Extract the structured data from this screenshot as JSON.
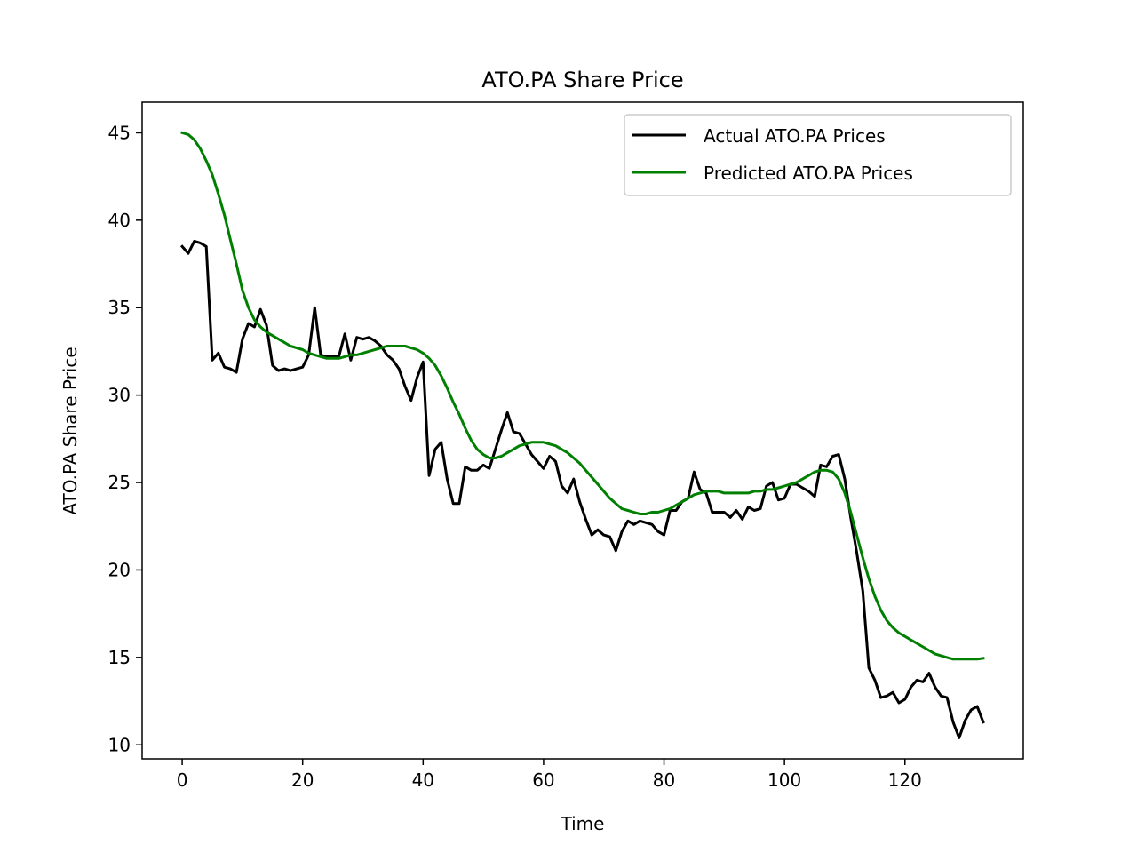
{
  "chart_data": {
    "type": "line",
    "title": "ATO.PA Share Price",
    "xlabel": "Time",
    "ylabel": "ATO.PA Share Price",
    "xlim": [
      -6.65,
      139.65
    ],
    "ylim": [
      9.2,
      46.75
    ],
    "xticks": [
      0,
      20,
      40,
      60,
      80,
      100,
      120
    ],
    "yticks": [
      10,
      15,
      20,
      25,
      30,
      35,
      40,
      45
    ],
    "grid": false,
    "legend_position": "upper right",
    "series": [
      {
        "name": "Actual ATO.PA Prices",
        "color": "#000000",
        "points": [
          [
            0,
            38.5
          ],
          [
            1,
            38.1
          ],
          [
            2,
            38.8
          ],
          [
            3,
            38.7
          ],
          [
            4,
            38.5
          ],
          [
            5,
            32.0
          ],
          [
            6,
            32.4
          ],
          [
            7,
            31.6
          ],
          [
            8,
            31.5
          ],
          [
            9,
            31.3
          ],
          [
            10,
            33.2
          ],
          [
            11,
            34.1
          ],
          [
            12,
            33.9
          ],
          [
            13,
            34.9
          ],
          [
            14,
            34.0
          ],
          [
            15,
            31.7
          ],
          [
            16,
            31.4
          ],
          [
            17,
            31.5
          ],
          [
            18,
            31.4
          ],
          [
            19,
            31.5
          ],
          [
            20,
            31.6
          ],
          [
            21,
            32.3
          ],
          [
            22,
            35.0
          ],
          [
            23,
            32.3
          ],
          [
            24,
            32.2
          ],
          [
            25,
            32.2
          ],
          [
            26,
            32.2
          ],
          [
            27,
            33.5
          ],
          [
            28,
            32.0
          ],
          [
            29,
            33.3
          ],
          [
            30,
            33.2
          ],
          [
            31,
            33.3
          ],
          [
            32,
            33.1
          ],
          [
            33,
            32.8
          ],
          [
            34,
            32.3
          ],
          [
            35,
            32.0
          ],
          [
            36,
            31.5
          ],
          [
            37,
            30.5
          ],
          [
            38,
            29.7
          ],
          [
            39,
            31.0
          ],
          [
            40,
            31.9
          ],
          [
            41,
            25.4
          ],
          [
            42,
            26.9
          ],
          [
            43,
            27.3
          ],
          [
            44,
            25.2
          ],
          [
            45,
            23.8
          ],
          [
            46,
            23.8
          ],
          [
            47,
            25.9
          ],
          [
            48,
            25.7
          ],
          [
            49,
            25.7
          ],
          [
            50,
            26.0
          ],
          [
            51,
            25.8
          ],
          [
            52,
            26.9
          ],
          [
            53,
            28.0
          ],
          [
            54,
            29.0
          ],
          [
            55,
            27.9
          ],
          [
            56,
            27.8
          ],
          [
            57,
            27.2
          ],
          [
            58,
            26.6
          ],
          [
            59,
            26.2
          ],
          [
            60,
            25.8
          ],
          [
            61,
            26.5
          ],
          [
            62,
            26.2
          ],
          [
            63,
            24.8
          ],
          [
            64,
            24.4
          ],
          [
            65,
            25.2
          ],
          [
            66,
            23.9
          ],
          [
            67,
            22.9
          ],
          [
            68,
            22.0
          ],
          [
            69,
            22.3
          ],
          [
            70,
            22.0
          ],
          [
            71,
            21.9
          ],
          [
            72,
            21.1
          ],
          [
            73,
            22.2
          ],
          [
            74,
            22.8
          ],
          [
            75,
            22.6
          ],
          [
            76,
            22.8
          ],
          [
            77,
            22.7
          ],
          [
            78,
            22.6
          ],
          [
            79,
            22.2
          ],
          [
            80,
            22.0
          ],
          [
            81,
            23.4
          ],
          [
            82,
            23.4
          ],
          [
            83,
            23.9
          ],
          [
            84,
            24.1
          ],
          [
            85,
            25.6
          ],
          [
            86,
            24.6
          ],
          [
            87,
            24.4
          ],
          [
            88,
            23.3
          ],
          [
            89,
            23.3
          ],
          [
            90,
            23.3
          ],
          [
            91,
            23.0
          ],
          [
            92,
            23.4
          ],
          [
            93,
            22.9
          ],
          [
            94,
            23.6
          ],
          [
            95,
            23.4
          ],
          [
            96,
            23.5
          ],
          [
            97,
            24.8
          ],
          [
            98,
            25.0
          ],
          [
            99,
            24.0
          ],
          [
            100,
            24.1
          ],
          [
            101,
            24.9
          ],
          [
            102,
            24.9
          ],
          [
            103,
            24.7
          ],
          [
            104,
            24.5
          ],
          [
            105,
            24.2
          ],
          [
            106,
            26.0
          ],
          [
            107,
            25.9
          ],
          [
            108,
            26.5
          ],
          [
            109,
            26.6
          ],
          [
            110,
            25.2
          ],
          [
            111,
            23.0
          ],
          [
            112,
            21.0
          ],
          [
            113,
            18.8
          ],
          [
            114,
            14.4
          ],
          [
            115,
            13.7
          ],
          [
            116,
            12.7
          ],
          [
            117,
            12.8
          ],
          [
            118,
            13.0
          ],
          [
            119,
            12.4
          ],
          [
            120,
            12.6
          ],
          [
            121,
            13.3
          ],
          [
            122,
            13.7
          ],
          [
            123,
            13.6
          ],
          [
            124,
            14.1
          ],
          [
            125,
            13.3
          ],
          [
            126,
            12.8
          ],
          [
            127,
            12.7
          ],
          [
            128,
            11.3
          ],
          [
            129,
            10.4
          ],
          [
            130,
            11.4
          ],
          [
            131,
            12.0
          ],
          [
            132,
            12.2
          ],
          [
            133,
            11.3
          ]
        ]
      },
      {
        "name": "Predicted ATO.PA Prices",
        "color": "#008000",
        "points": [
          [
            0,
            45.0
          ],
          [
            1,
            44.9
          ],
          [
            2,
            44.6
          ],
          [
            3,
            44.1
          ],
          [
            4,
            43.4
          ],
          [
            5,
            42.6
          ],
          [
            6,
            41.5
          ],
          [
            7,
            40.3
          ],
          [
            8,
            38.9
          ],
          [
            9,
            37.5
          ],
          [
            10,
            36.0
          ],
          [
            11,
            35.0
          ],
          [
            12,
            34.3
          ],
          [
            13,
            33.9
          ],
          [
            14,
            33.6
          ],
          [
            15,
            33.4
          ],
          [
            16,
            33.2
          ],
          [
            17,
            33.0
          ],
          [
            18,
            32.8
          ],
          [
            19,
            32.7
          ],
          [
            20,
            32.6
          ],
          [
            21,
            32.4
          ],
          [
            22,
            32.3
          ],
          [
            23,
            32.2
          ],
          [
            24,
            32.1
          ],
          [
            25,
            32.1
          ],
          [
            26,
            32.1
          ],
          [
            27,
            32.2
          ],
          [
            28,
            32.3
          ],
          [
            29,
            32.3
          ],
          [
            30,
            32.4
          ],
          [
            31,
            32.5
          ],
          [
            32,
            32.6
          ],
          [
            33,
            32.7
          ],
          [
            34,
            32.8
          ],
          [
            35,
            32.8
          ],
          [
            36,
            32.8
          ],
          [
            37,
            32.8
          ],
          [
            38,
            32.7
          ],
          [
            39,
            32.6
          ],
          [
            40,
            32.4
          ],
          [
            41,
            32.1
          ],
          [
            42,
            31.7
          ],
          [
            43,
            31.1
          ],
          [
            44,
            30.4
          ],
          [
            45,
            29.6
          ],
          [
            46,
            28.9
          ],
          [
            47,
            28.1
          ],
          [
            48,
            27.4
          ],
          [
            49,
            26.9
          ],
          [
            50,
            26.6
          ],
          [
            51,
            26.4
          ],
          [
            52,
            26.4
          ],
          [
            53,
            26.5
          ],
          [
            54,
            26.7
          ],
          [
            55,
            26.9
          ],
          [
            56,
            27.1
          ],
          [
            57,
            27.2
          ],
          [
            58,
            27.3
          ],
          [
            59,
            27.3
          ],
          [
            60,
            27.3
          ],
          [
            61,
            27.2
          ],
          [
            62,
            27.1
          ],
          [
            63,
            26.9
          ],
          [
            64,
            26.7
          ],
          [
            65,
            26.4
          ],
          [
            66,
            26.1
          ],
          [
            67,
            25.7
          ],
          [
            68,
            25.3
          ],
          [
            69,
            24.9
          ],
          [
            70,
            24.5
          ],
          [
            71,
            24.1
          ],
          [
            72,
            23.8
          ],
          [
            73,
            23.5
          ],
          [
            74,
            23.4
          ],
          [
            75,
            23.3
          ],
          [
            76,
            23.2
          ],
          [
            77,
            23.2
          ],
          [
            78,
            23.3
          ],
          [
            79,
            23.3
          ],
          [
            80,
            23.4
          ],
          [
            81,
            23.5
          ],
          [
            82,
            23.7
          ],
          [
            83,
            23.9
          ],
          [
            84,
            24.1
          ],
          [
            85,
            24.3
          ],
          [
            86,
            24.4
          ],
          [
            87,
            24.5
          ],
          [
            88,
            24.5
          ],
          [
            89,
            24.5
          ],
          [
            90,
            24.4
          ],
          [
            91,
            24.4
          ],
          [
            92,
            24.4
          ],
          [
            93,
            24.4
          ],
          [
            94,
            24.4
          ],
          [
            95,
            24.5
          ],
          [
            96,
            24.5
          ],
          [
            97,
            24.6
          ],
          [
            98,
            24.6
          ],
          [
            99,
            24.7
          ],
          [
            100,
            24.8
          ],
          [
            101,
            24.9
          ],
          [
            102,
            25.0
          ],
          [
            103,
            25.2
          ],
          [
            104,
            25.4
          ],
          [
            105,
            25.6
          ],
          [
            106,
            25.7
          ],
          [
            107,
            25.7
          ],
          [
            108,
            25.6
          ],
          [
            109,
            25.2
          ],
          [
            110,
            24.4
          ],
          [
            111,
            23.3
          ],
          [
            112,
            22.0
          ],
          [
            113,
            20.7
          ],
          [
            114,
            19.5
          ],
          [
            115,
            18.5
          ],
          [
            116,
            17.7
          ],
          [
            117,
            17.1
          ],
          [
            118,
            16.7
          ],
          [
            119,
            16.4
          ],
          [
            120,
            16.2
          ],
          [
            121,
            16.0
          ],
          [
            122,
            15.8
          ],
          [
            123,
            15.6
          ],
          [
            124,
            15.4
          ],
          [
            125,
            15.2
          ],
          [
            126,
            15.1
          ],
          [
            127,
            15.0
          ],
          [
            128,
            14.9
          ],
          [
            129,
            14.9
          ],
          [
            130,
            14.9
          ],
          [
            131,
            14.9
          ],
          [
            132,
            14.9
          ],
          [
            133,
            14.95
          ]
        ]
      }
    ]
  }
}
